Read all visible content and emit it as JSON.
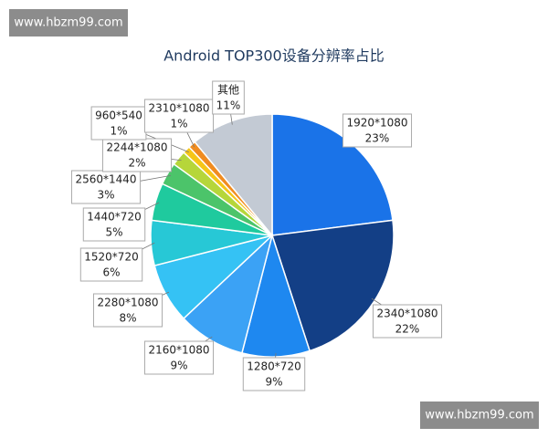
{
  "watermarks": [
    "www.hbzm99.com",
    "www.hbzm99.com"
  ],
  "chart_data": {
    "type": "pie",
    "title": "Android TOP300设备分辨率占比",
    "categories": [
      "1920*1080",
      "2340*1080",
      "1280*720",
      "2160*1080",
      "2280*1080",
      "1520*720",
      "1440*720",
      "2560*1440",
      "2244*1080",
      "960*540",
      "2310*1080",
      "其他"
    ],
    "values": [
      23,
      22,
      9,
      9,
      8,
      6,
      5,
      3,
      2,
      1,
      1,
      11
    ],
    "value_labels": [
      "23%",
      "22%",
      "9%",
      "9%",
      "8%",
      "6%",
      "5%",
      "3%",
      "2%",
      "1%",
      "1%",
      "11%"
    ],
    "colors": [
      "#1a73e8",
      "#133f86",
      "#1e88f0",
      "#3ba2f5",
      "#35c2f4",
      "#27c8d6",
      "#1fca9e",
      "#4cc46a",
      "#b6d63a",
      "#f5c518",
      "#f08c20",
      "#c3cad4"
    ]
  }
}
